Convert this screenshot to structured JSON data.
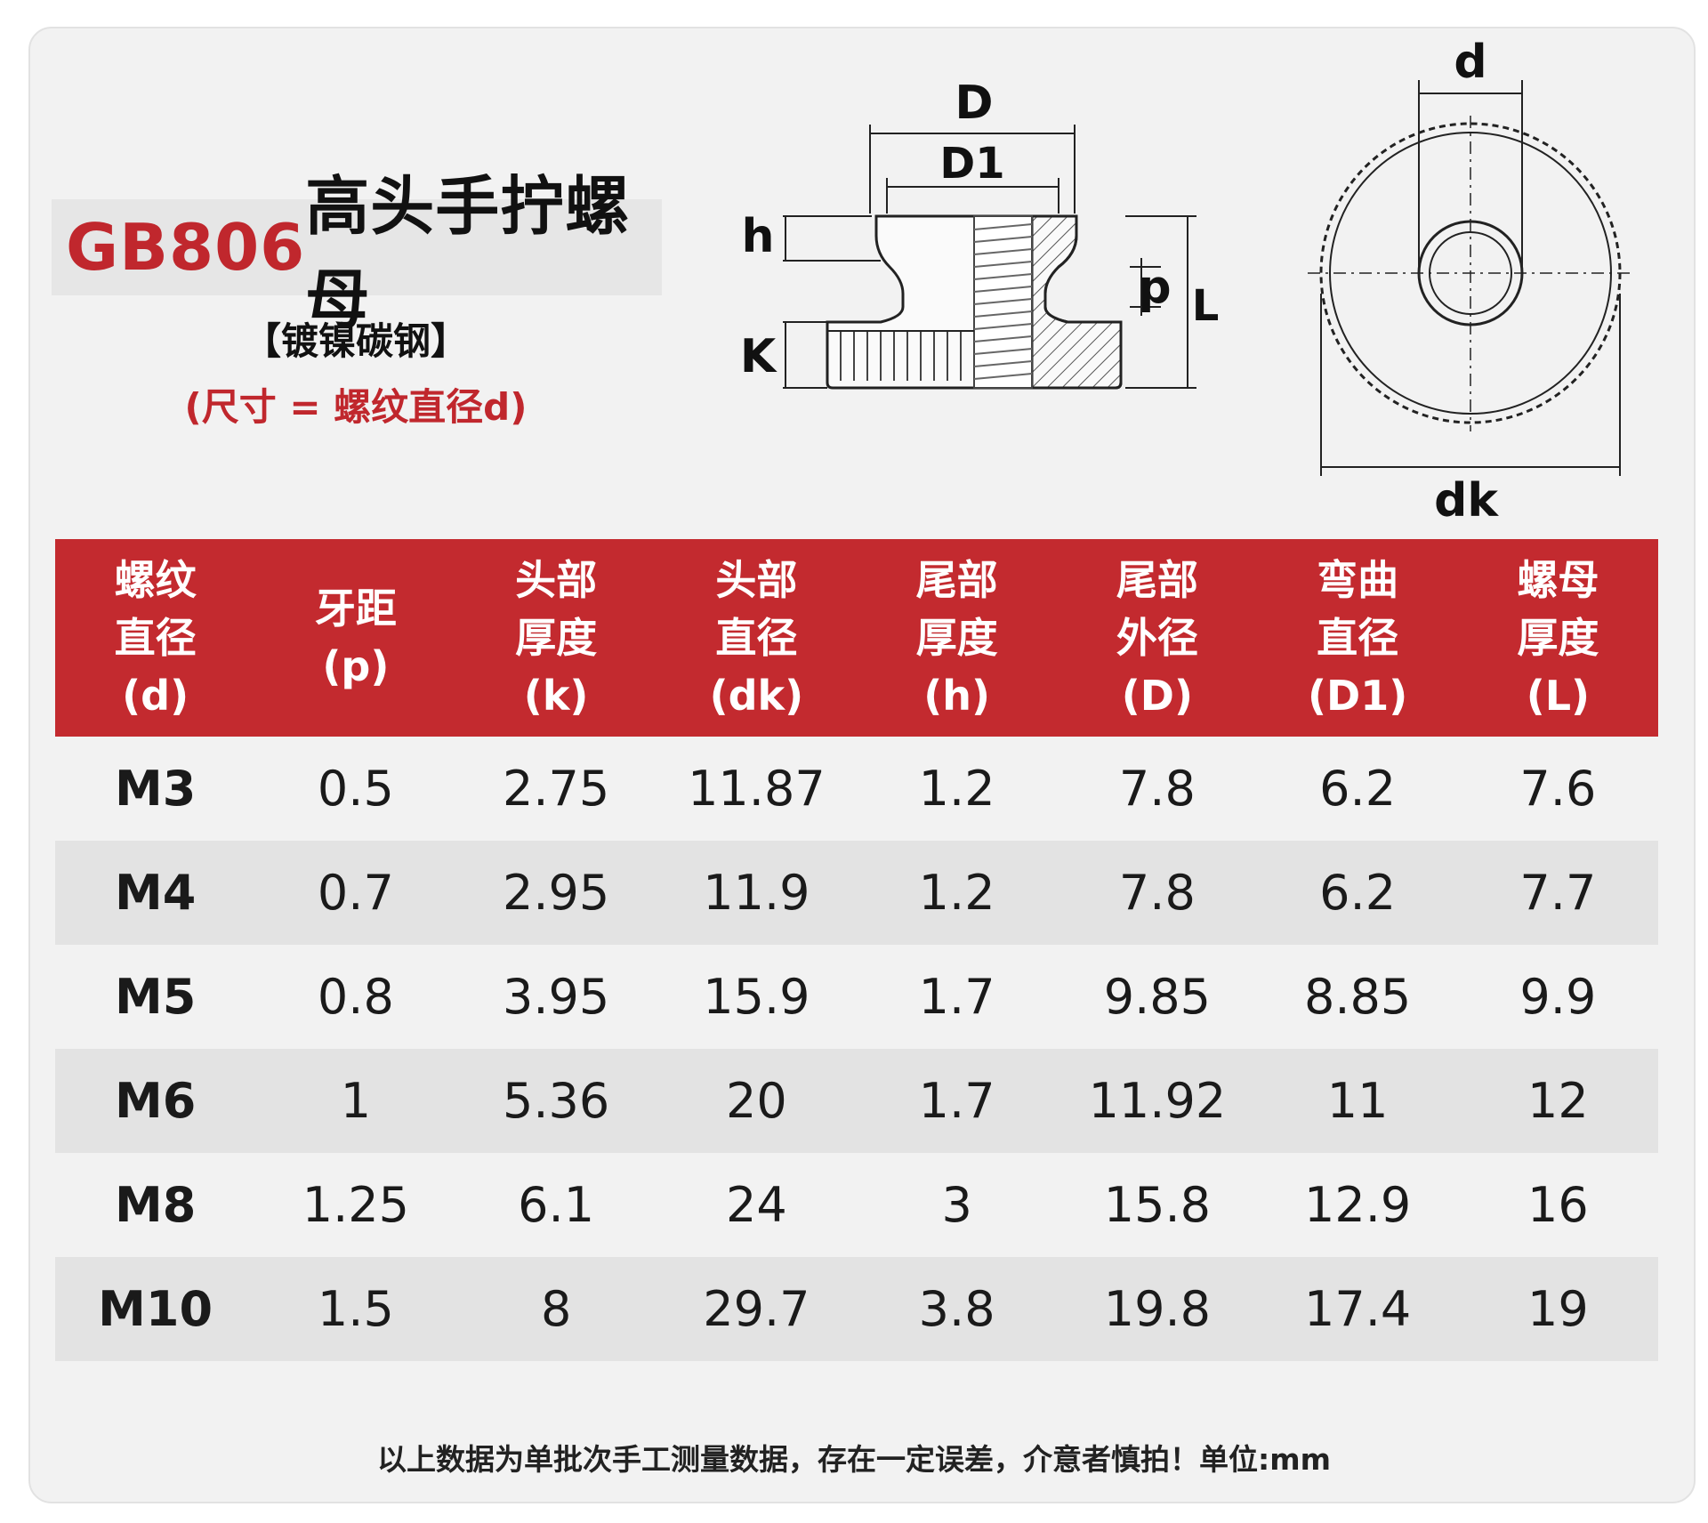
{
  "title": {
    "code": "GB806",
    "name": "高头手拧螺母"
  },
  "material": "【镀镍碳钢】",
  "size_note": "(尺寸 = 螺纹直径d)",
  "diagram_labels": {
    "D": "D",
    "D1": "D1",
    "h": "h",
    "K": "K",
    "p": "p",
    "L": "L",
    "d": "d",
    "dk": "dk"
  },
  "table": {
    "headers": [
      [
        "螺纹",
        "直径",
        "(d)"
      ],
      [
        "牙距",
        "(p)"
      ],
      [
        "头部",
        "厚度",
        "(k)"
      ],
      [
        "头部",
        "直径",
        "(dk)"
      ],
      [
        "尾部",
        "厚度",
        "(h)"
      ],
      [
        "尾部",
        "外径",
        "(D)"
      ],
      [
        "弯曲",
        "直径",
        "(D1)"
      ],
      [
        "螺母",
        "厚度",
        "(L)"
      ]
    ],
    "rows": [
      [
        "M3",
        "0.5",
        "2.75",
        "11.87",
        "1.2",
        "7.8",
        "6.2",
        "7.6"
      ],
      [
        "M4",
        "0.7",
        "2.95",
        "11.9",
        "1.2",
        "7.8",
        "6.2",
        "7.7"
      ],
      [
        "M5",
        "0.8",
        "3.95",
        "15.9",
        "1.7",
        "9.85",
        "8.85",
        "9.9"
      ],
      [
        "M6",
        "1",
        "5.36",
        "20",
        "1.7",
        "11.92",
        "11",
        "12"
      ],
      [
        "M8",
        "1.25",
        "6.1",
        "24",
        "3",
        "15.8",
        "12.9",
        "16"
      ],
      [
        "M10",
        "1.5",
        "8",
        "29.7",
        "3.8",
        "19.8",
        "17.4",
        "19"
      ]
    ]
  },
  "footer": "以上数据为单批次手工测量数据，存在一定误差，介意者慎拍！单位:mm",
  "colors": {
    "accent_red": "#c32a2f",
    "title_red": "#c0272d"
  }
}
